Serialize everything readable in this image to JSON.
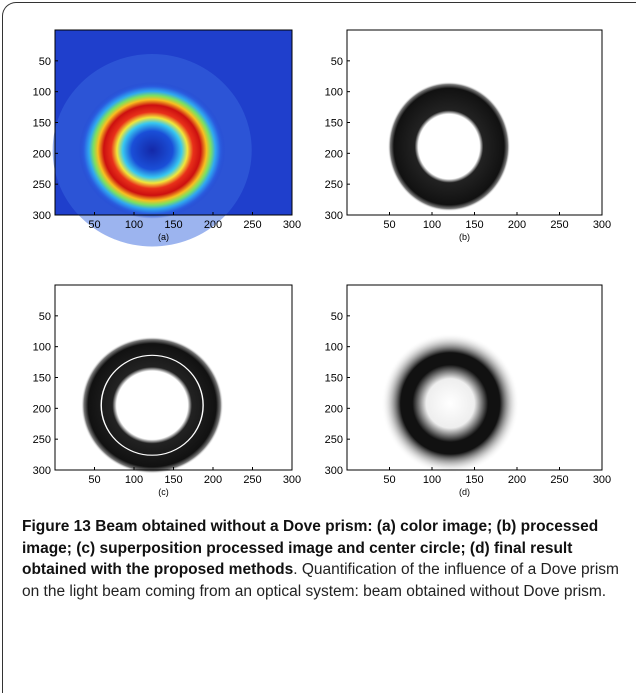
{
  "figure": {
    "panels": [
      {
        "label": "(a)",
        "xlim": [
          0,
          300
        ],
        "ylim": [
          0,
          300
        ],
        "y_reversed": true,
        "xticks": [
          50,
          100,
          150,
          200,
          250,
          300
        ],
        "yticks": [
          50,
          100,
          150,
          200,
          250,
          300
        ]
      },
      {
        "label": "(b)",
        "xlim": [
          0,
          300
        ],
        "ylim": [
          0,
          300
        ],
        "y_reversed": true,
        "xticks": [
          50,
          100,
          150,
          200,
          250,
          300
        ],
        "yticks": [
          50,
          100,
          150,
          200,
          250,
          300
        ]
      },
      {
        "label": "(c)",
        "xlim": [
          0,
          300
        ],
        "ylim": [
          0,
          300
        ],
        "y_reversed": true,
        "xticks": [
          50,
          100,
          150,
          200,
          250,
          300
        ],
        "yticks": [
          50,
          100,
          150,
          200,
          250,
          300
        ]
      },
      {
        "label": "(d)",
        "xlim": [
          0,
          300
        ],
        "ylim": [
          0,
          300
        ],
        "y_reversed": true,
        "xticks": [
          50,
          100,
          150,
          200,
          250,
          300
        ],
        "yticks": [
          50,
          100,
          150,
          200,
          250,
          300
        ]
      }
    ],
    "caption": {
      "title": "Figure 13 Beam obtained without a Dove prism: (a) color image; (b) processed image; (c) superposition processed image and center circle; (d) final result obtained with the proposed methods",
      "text": ". Quantification of the influence of a Dove prism on the light beam coming from an optical system: beam obtained without Dove prism."
    }
  }
}
